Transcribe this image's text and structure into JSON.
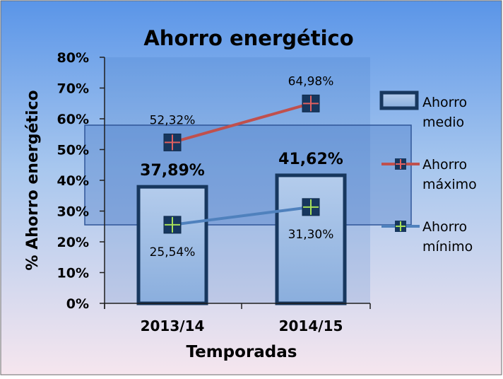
{
  "chart_data": {
    "type": "bar",
    "title": "Ahorro energético",
    "xlabel": "Temporadas",
    "ylabel": "% Ahorro energético",
    "categories": [
      "2013/14",
      "2014/15"
    ],
    "ylim": [
      0,
      80
    ],
    "yticks": [
      "0%",
      "10%",
      "20%",
      "30%",
      "40%",
      "50%",
      "60%",
      "70%",
      "80%"
    ],
    "series": [
      {
        "name": "Ahorro medio",
        "kind": "bar",
        "values": [
          37.89,
          41.62
        ],
        "labels": [
          "37,89%",
          "41,62%"
        ]
      },
      {
        "name": "Ahorro máximo",
        "kind": "line",
        "values": [
          52.32,
          64.98
        ],
        "labels": [
          "52,32%",
          "64,98%"
        ],
        "color": "#c0504d"
      },
      {
        "name": "Ahorro mínimo",
        "kind": "line",
        "values": [
          25.54,
          31.3
        ],
        "labels": [
          "25,54%",
          "31,30%"
        ],
        "color": "#4f81bd"
      }
    ],
    "legend_position": "right",
    "grid": false
  },
  "colors": {
    "bar_fill": "#9ab9e0",
    "bar_border": "#17375e",
    "marker_fill": "#17375e",
    "axis": "#1f1f1f"
  }
}
